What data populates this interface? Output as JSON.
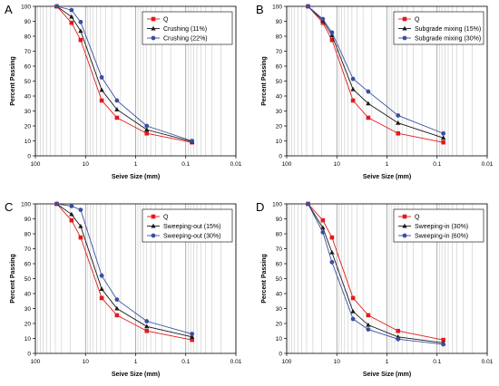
{
  "chart_data": [
    {
      "panel_label": "A",
      "type": "line",
      "xlabel": "Seive Size (mm)",
      "ylabel": "Percent Passing",
      "x_scale": "log",
      "x_reversed": true,
      "xlim": [
        100,
        0.01
      ],
      "ylim": [
        0,
        100
      ],
      "x_ticks": [
        "100",
        "10",
        "1",
        "0.1",
        "0.01"
      ],
      "y_ticks": [
        "0",
        "10",
        "20",
        "30",
        "40",
        "50",
        "60",
        "70",
        "80",
        "90",
        "100"
      ],
      "grid": "vertical-log",
      "legend_position": "top-right",
      "series": [
        {
          "name": "Q",
          "color": "#e41a1c",
          "marker": "square",
          "x": [
            37.5,
            19,
            12.5,
            4.75,
            2.36,
            0.6,
            0.075
          ],
          "y": [
            100,
            89,
            77.5,
            37,
            25.5,
            15,
            9
          ]
        },
        {
          "name": "Crushing (11%)",
          "color": "#1a1a1a",
          "marker": "triangle",
          "x": [
            37.5,
            19,
            12.5,
            4.75,
            2.36,
            0.6,
            0.075
          ],
          "y": [
            100,
            93,
            83.5,
            44,
            31,
            17.5,
            9.5
          ]
        },
        {
          "name": "Crushing (22%)",
          "color": "#3a4fa0",
          "marker": "circle",
          "x": [
            37.5,
            19,
            12.5,
            4.75,
            2.36,
            0.6,
            0.075
          ],
          "y": [
            100,
            97.5,
            89.5,
            52.5,
            37,
            20,
            10
          ]
        }
      ]
    },
    {
      "panel_label": "B",
      "type": "line",
      "xlabel": "Seive Size (mm)",
      "ylabel": "Percent Passing",
      "x_scale": "log",
      "x_reversed": true,
      "xlim": [
        100,
        0.01
      ],
      "ylim": [
        0,
        100
      ],
      "x_ticks": [
        "100",
        "10",
        "1",
        "0.1",
        "0.01"
      ],
      "y_ticks": [
        "0",
        "10",
        "20",
        "30",
        "40",
        "50",
        "60",
        "70",
        "80",
        "90",
        "100"
      ],
      "grid": "vertical-log",
      "legend_position": "top-right",
      "series": [
        {
          "name": "Q",
          "color": "#e41a1c",
          "marker": "square",
          "x": [
            37.5,
            19,
            12.5,
            4.75,
            2.36,
            0.6,
            0.075
          ],
          "y": [
            100,
            89,
            77.5,
            37,
            25.5,
            15,
            9
          ]
        },
        {
          "name": "Subgrade mixing (15%)",
          "color": "#1a1a1a",
          "marker": "triangle",
          "x": [
            37.5,
            19,
            12.5,
            4.75,
            2.36,
            0.6,
            0.075
          ],
          "y": [
            100,
            90.5,
            80.5,
            44.5,
            35,
            22,
            12
          ]
        },
        {
          "name": "Subgrade mixing (30%)",
          "color": "#3a4fa0",
          "marker": "circle",
          "x": [
            37.5,
            19,
            12.5,
            4.75,
            2.36,
            0.6,
            0.075
          ],
          "y": [
            100,
            91.5,
            82.5,
            51.5,
            43,
            27,
            15
          ]
        }
      ]
    },
    {
      "panel_label": "C",
      "type": "line",
      "xlabel": "Seive Size (mm)",
      "ylabel": "Percent Passing",
      "x_scale": "log",
      "x_reversed": true,
      "xlim": [
        100,
        0.01
      ],
      "ylim": [
        0,
        100
      ],
      "x_ticks": [
        "100",
        "10",
        "1",
        "0.1",
        "0.01"
      ],
      "y_ticks": [
        "0",
        "10",
        "20",
        "30",
        "40",
        "50",
        "60",
        "70",
        "80",
        "90",
        "100"
      ],
      "grid": "vertical-log",
      "legend_position": "top-right",
      "series": [
        {
          "name": "Q",
          "color": "#e41a1c",
          "marker": "square",
          "x": [
            37.5,
            19,
            12.5,
            4.75,
            2.36,
            0.6,
            0.075
          ],
          "y": [
            100,
            89,
            77.5,
            37,
            25.5,
            15,
            9
          ]
        },
        {
          "name": "Sweeping-out (15%)",
          "color": "#1a1a1a",
          "marker": "triangle",
          "x": [
            37.5,
            19,
            12.5,
            4.75,
            2.36,
            0.6,
            0.075
          ],
          "y": [
            100,
            93,
            85,
            43,
            30,
            18,
            11
          ]
        },
        {
          "name": "Sweeping-out (30%)",
          "color": "#3a4fa0",
          "marker": "circle",
          "x": [
            37.5,
            19,
            12.5,
            4.75,
            2.36,
            0.6,
            0.075
          ],
          "y": [
            100,
            98.5,
            96,
            52,
            36,
            21.5,
            13
          ]
        }
      ]
    },
    {
      "panel_label": "D",
      "type": "line",
      "xlabel": "Seive Size (mm)",
      "ylabel": "Percent Passing",
      "x_scale": "log",
      "x_reversed": true,
      "xlim": [
        100,
        0.01
      ],
      "ylim": [
        0,
        100
      ],
      "x_ticks": [
        "100",
        "10",
        "1",
        "0.1",
        "0.01"
      ],
      "y_ticks": [
        "0",
        "10",
        "20",
        "30",
        "40",
        "50",
        "60",
        "70",
        "80",
        "90",
        "100"
      ],
      "grid": "vertical-log",
      "legend_position": "top-right",
      "series": [
        {
          "name": "Q",
          "color": "#e41a1c",
          "marker": "square",
          "x": [
            37.5,
            19,
            12.5,
            4.75,
            2.36,
            0.6,
            0.075
          ],
          "y": [
            100,
            89,
            77.5,
            37,
            25.5,
            15,
            9
          ]
        },
        {
          "name": "Sweeping-in (30%)",
          "color": "#1a1a1a",
          "marker": "triangle",
          "x": [
            37.5,
            19,
            12.5,
            4.75,
            2.36,
            0.6,
            0.075
          ],
          "y": [
            100,
            84,
            67.5,
            28,
            19,
            11,
            7
          ]
        },
        {
          "name": "Sweeping-in (60%)",
          "color": "#3a4fa0",
          "marker": "circle",
          "x": [
            37.5,
            19,
            12.5,
            4.75,
            2.36,
            0.6,
            0.075
          ],
          "y": [
            100,
            81,
            61,
            23,
            16,
            9.5,
            6
          ]
        }
      ]
    }
  ]
}
